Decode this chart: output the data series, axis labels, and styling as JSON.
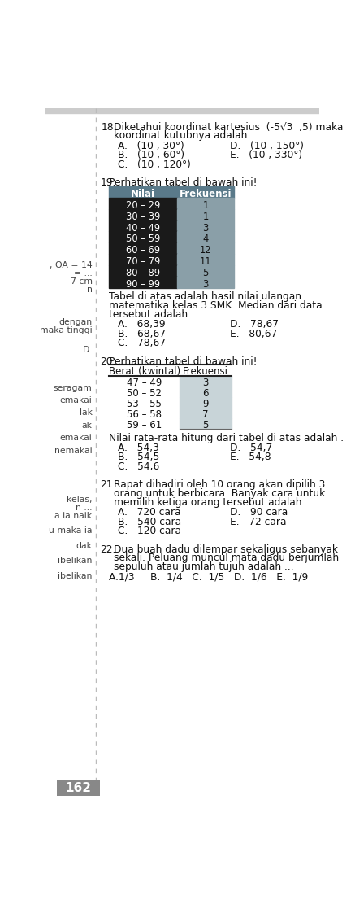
{
  "bg_color": "#ffffff",
  "left_col_text_color": "#444444",
  "divider_color": "#bbbbbb",
  "page_number": "162",
  "page_num_bg": "#888888",
  "page_num_color": "#ffffff",
  "q18_number": "18.",
  "q18_text1": "Diketahui koordinat kartesius  (-5√3  ,5) maka",
  "q18_text2": "koordinat kutubnya adalah ...",
  "q18_options": [
    [
      "A.   (10 , 30°)",
      "D.   (10 , 150°)"
    ],
    [
      "B.   (10 , 60°)",
      "E.   (10 , 330°)"
    ],
    [
      "C.   (10 , 120°)",
      ""
    ]
  ],
  "q19_number": "19.",
  "q19_intro": "Perhatikan tabel di bawah ini!",
  "q19_table_header": [
    "Nilai",
    "Frekuensi"
  ],
  "q19_table_header_bg": "#5a7a8a",
  "q19_table_row_bg1": "#1a1a1a",
  "q19_table_row_bg2": "#8a9fa8",
  "q19_table_rows": [
    [
      "20 – 29",
      "1"
    ],
    [
      "30 – 39",
      "1"
    ],
    [
      "40 – 49",
      "3"
    ],
    [
      "50 – 59",
      "4"
    ],
    [
      "60 – 69",
      "12"
    ],
    [
      "70 – 79",
      "11"
    ],
    [
      "80 – 89",
      "5"
    ],
    [
      "90 – 99",
      "3"
    ]
  ],
  "q19_desc1": "Tabel di atas adalah hasil nilai ulangan",
  "q19_desc2": "matematika kelas 3 SMK. Median dari data",
  "q19_desc3": "tersebut adalah ...",
  "q19_options": [
    [
      "A.   68,39",
      "D.   78,67"
    ],
    [
      "B.   68,67",
      "E.   80,67"
    ],
    [
      "C.   78,67",
      ""
    ]
  ],
  "q20_number": "20.",
  "q20_intro": "Perhatikan tabel di bawah ini!",
  "q20_table_header": [
    "Berat (kwintal)",
    "Frekuensi"
  ],
  "q20_table_row_bg": "#c8d4d8",
  "q20_table_rows": [
    [
      "47 – 49",
      "3"
    ],
    [
      "50 – 52",
      "6"
    ],
    [
      "53 – 55",
      "9"
    ],
    [
      "56 – 58",
      "7"
    ],
    [
      "59 – 61",
      "5"
    ]
  ],
  "q20_desc": "Nilai rata-rata hitung dari tabel di atas adalah .",
  "q20_options": [
    [
      "A.   54,3",
      "D.   54,7"
    ],
    [
      "B.   54,5",
      "E.   54,8"
    ],
    [
      "C.   54,6",
      ""
    ]
  ],
  "q21_number": "21.",
  "q21_text1": "Rapat dihadiri oleh 10 orang akan dipilih 3",
  "q21_text2": "orang untuk berbicara. Banyak cara untuk",
  "q21_text3": "memilih ketiga orang tersebut adalah ...",
  "q21_options": [
    [
      "A.   720 cara",
      "D.   90 cara"
    ],
    [
      "B.   540 cara",
      "E.   72 cara"
    ],
    [
      "C.   120 cara",
      ""
    ]
  ],
  "q22_number": "22.",
  "q22_text1": "Dua buah dadu dilempar sekaligus sebanyak",
  "q22_text2": "sekali. Peluang muncul mata dadu berjumlah",
  "q22_text3": "sepuluh atau jumlah tujuh adalah ...",
  "q22_options_inline": "A.1/3     B.  1/4   C.  1/5   D.  1/6   E.  1/9",
  "top_bar_color": "#cccccc",
  "top_bar_height": 8,
  "left_col_items": [
    [
      ", OA = 14",
      245
    ],
    [
      "= ...",
      258
    ],
    [
      "7 cm",
      271
    ],
    [
      "n",
      284
    ],
    [
      "dengan",
      335
    ],
    [
      "maka tinggi",
      348
    ],
    [
      "D.",
      380
    ],
    [
      "seragam",
      440
    ],
    [
      "emakai",
      460
    ],
    [
      "lak",
      480
    ],
    [
      "ak",
      500
    ],
    [
      "emakai",
      520
    ],
    [
      "nemakai",
      540
    ],
    [
      "kelas,",
      618
    ],
    [
      "n ...",
      631
    ],
    [
      "a ia naik",
      644
    ],
    [
      "u maka ia",
      668
    ],
    [
      "dak",
      692
    ],
    [
      "ibelikan",
      716
    ],
    [
      "ibelikan",
      740
    ]
  ]
}
